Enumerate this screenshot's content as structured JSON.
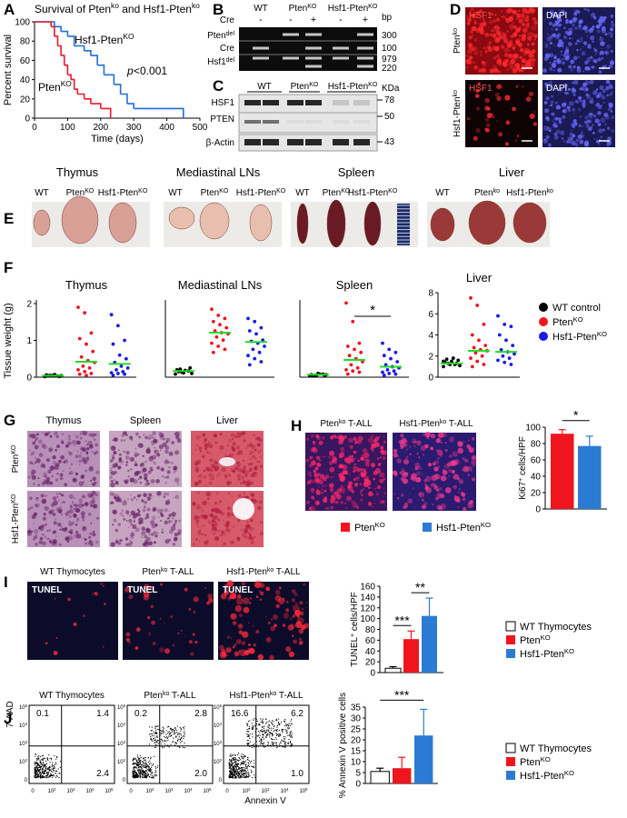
{
  "panels": {
    "A": {
      "letter": "A",
      "type": "line",
      "title": [
        "Survival of Pten",
        "ko",
        " and Hsf1-Pten",
        "ko"
      ],
      "ylabel": "Percent survival",
      "xlabel": "Time (days)",
      "xlim": [
        0,
        500
      ],
      "ylim": [
        0,
        100
      ],
      "xticks": [
        0,
        100,
        200,
        300,
        400,
        500
      ],
      "yticks": [
        0,
        20,
        40,
        60,
        80,
        100
      ],
      "series": [
        {
          "name": [
            "Hsf1-Pten",
            "KO"
          ],
          "color": "#1f6fd6",
          "x": [
            0,
            60,
            80,
            100,
            120,
            150,
            170,
            190,
            210,
            240,
            260,
            280,
            300,
            450
          ],
          "values": [
            100,
            95,
            90,
            85,
            75,
            70,
            65,
            55,
            45,
            35,
            25,
            15,
            10,
            0
          ]
        },
        {
          "name": [
            "Pten",
            "KO"
          ],
          "color": "#e8192c",
          "x": [
            0,
            50,
            60,
            70,
            80,
            90,
            100,
            110,
            120,
            130,
            150,
            170,
            200,
            230
          ],
          "values": [
            100,
            95,
            85,
            75,
            65,
            55,
            45,
            40,
            30,
            25,
            20,
            15,
            10,
            0
          ]
        }
      ],
      "p_label": "p",
      "p_value": "<0.001"
    },
    "B": {
      "letter": "B",
      "header": [
        "WT",
        [
          "Pten",
          "KO"
        ],
        [
          "Hsf1-Pten",
          "KO"
        ]
      ],
      "cre_label": "Cre",
      "cre": [
        "-",
        "-",
        "+",
        "-",
        "+"
      ],
      "unit": "bp",
      "rows": [
        [
          "Pten",
          "del"
        ],
        "Cre",
        [
          "Hsf1",
          "del"
        ]
      ],
      "sizes": [
        "300",
        "100",
        "979",
        "220"
      ]
    },
    "C": {
      "letter": "C",
      "header": [
        "WT",
        [
          "Pten",
          "KO"
        ],
        [
          "Hsf1-Pten",
          "KO"
        ]
      ],
      "unit": "KDa",
      "rows": [
        "HSF1",
        "PTEN",
        "β-Actin"
      ],
      "sizes": [
        "78",
        "50",
        "43"
      ]
    },
    "D": {
      "letter": "D",
      "stains": [
        "HSF1",
        "DAPI"
      ],
      "rows": [
        [
          "Pten",
          "ko"
        ],
        [
          "Hsf1-Pten",
          "ko"
        ]
      ]
    },
    "E": {
      "letter": "E",
      "tissues": [
        {
          "name": "Thymus",
          "samples": [
            "WT",
            [
              "Pten",
              "KO"
            ],
            [
              "Hsf1-Pten",
              "KO"
            ]
          ]
        },
        {
          "name": "Mediastinal LNs",
          "samples": [
            "WT",
            [
              "Pten",
              "KO"
            ],
            [
              "Hsf1-Pten",
              "KO"
            ]
          ]
        },
        {
          "name": "Spleen",
          "samples": [
            "WT",
            [
              "Pten",
              "KO"
            ],
            [
              "Hsf1-Pten",
              "KO"
            ]
          ]
        },
        {
          "name": "Liver",
          "samples": [
            "WT",
            [
              "Pten",
              "ko"
            ],
            [
              "Hsf1-Pten",
              "ko"
            ]
          ]
        }
      ]
    },
    "F": {
      "letter": "F",
      "type": "scatter",
      "ylabel": "Tissue weight (g)",
      "median_color": "#22dd22",
      "significance": "*",
      "legend": [
        {
          "name": "WT control",
          "color": "#000000"
        },
        {
          "name": [
            "Pten",
            "KO"
          ],
          "color": "#f0141e"
        },
        {
          "name": [
            "Hsf1-Pten",
            "KO"
          ],
          "color": "#1a1ae6"
        }
      ],
      "plots": [
        {
          "title": "Thymus",
          "ylim": [
            0,
            2.1
          ],
          "yticks": [
            0,
            1,
            2
          ],
          "groups": [
            {
              "values": [
                0.02,
                0.04,
                0.03,
                0.06,
                0.05,
                0.02,
                0.03,
                0.07,
                0.04,
                0.05,
                0.03,
                0.02
              ],
              "median": 0.04
            },
            {
              "values": [
                1.9,
                1.75,
                1.2,
                1.05,
                0.9,
                0.7,
                0.55,
                0.45,
                0.4,
                0.3,
                0.25,
                0.2,
                0.15,
                0.1,
                0.08,
                0.05
              ],
              "median": 0.42
            },
            {
              "values": [
                1.7,
                1.4,
                1.0,
                0.9,
                0.6,
                0.5,
                0.4,
                0.3,
                0.25,
                0.2,
                0.15,
                0.12,
                0.1,
                0.08,
                0.05
              ],
              "median": 0.36
            }
          ]
        },
        {
          "title": "Mediastinal LNs",
          "ylim": [
            0,
            1.25
          ],
          "groups": [
            {
              "values": [
                0.05,
                0.08,
                0.1,
                0.12,
                0.07,
                0.15,
                0.09,
                0.11,
                0.06,
                0.13
              ],
              "median": 0.1
            },
            {
              "values": [
                1.1,
                1.0,
                0.95,
                0.9,
                0.85,
                0.8,
                0.75,
                0.72,
                0.7,
                0.65,
                0.6,
                0.55,
                0.5,
                0.45,
                0.4
              ],
              "median": 0.72
            },
            {
              "values": [
                0.95,
                0.9,
                0.8,
                0.75,
                0.7,
                0.6,
                0.58,
                0.55,
                0.5,
                0.45,
                0.4,
                0.35,
                0.3,
                0.25,
                0.2
              ],
              "median": 0.57
            }
          ]
        },
        {
          "title": "Spleen",
          "ylim": [
            0,
            1.25
          ],
          "groups": [
            {
              "values": [
                0.02,
                0.03,
                0.05,
                0.04,
                0.06,
                0.03,
                0.02,
                0.05,
                0.04,
                0.03
              ],
              "median": 0.04
            },
            {
              "values": [
                1.2,
                0.9,
                0.55,
                0.5,
                0.45,
                0.4,
                0.35,
                0.3,
                0.25,
                0.2,
                0.15,
                0.12,
                0.1,
                0.08,
                0.05
              ],
              "median": 0.28
            },
            {
              "values": [
                0.55,
                0.45,
                0.4,
                0.35,
                0.3,
                0.25,
                0.2,
                0.17,
                0.15,
                0.12,
                0.1,
                0.08,
                0.06,
                0.05,
                0.03
              ],
              "median": 0.17
            }
          ]
        },
        {
          "title": "Liver",
          "ylim": [
            0,
            8
          ],
          "yticks": [
            0,
            2,
            4,
            6,
            8
          ],
          "groups": [
            {
              "values": [
                1.0,
                1.2,
                1.3,
                1.4,
                1.5,
                1.6,
                1.7,
                1.8,
                1.1,
                1.3,
                1.2,
                1.5
              ],
              "median": 1.3
            },
            {
              "values": [
                7.5,
                6.8,
                5.0,
                4.0,
                3.5,
                3.0,
                2.8,
                2.6,
                2.5,
                2.3,
                2.0,
                1.8,
                1.5,
                1.2,
                1.0
              ],
              "median": 2.5
            },
            {
              "values": [
                5.8,
                5.0,
                4.8,
                4.0,
                3.5,
                3.0,
                2.6,
                2.4,
                2.2,
                2.0,
                1.8,
                1.6,
                1.4,
                1.2
              ],
              "median": 2.4
            }
          ]
        }
      ]
    },
    "G": {
      "letter": "G",
      "columns": [
        "Thymus",
        "Spleen",
        "Liver"
      ],
      "rows": [
        [
          "Pten",
          "KO"
        ],
        [
          "Hsf1-Pten",
          "KO"
        ]
      ]
    },
    "H": {
      "letter": "H",
      "images": [
        [
          "Pten",
          "ko",
          "  T-ALL"
        ],
        [
          "Hsf1-Pten",
          "ko",
          "  T-ALL"
        ]
      ],
      "legend": [
        {
          "name": [
            "Pten",
            "KO"
          ],
          "color": "#f0141e"
        },
        {
          "name": [
            "Hsf1-Pten",
            "KO"
          ],
          "color": "#2b7bd4"
        }
      ],
      "chart": {
        "type": "bar",
        "ylabel": [
          "Ki67",
          "+",
          " cells/HPF"
        ],
        "ylim": [
          0,
          100
        ],
        "yticks": [
          0,
          20,
          40,
          60,
          80,
          100
        ],
        "values": [
          92,
          77
        ],
        "errors": [
          5,
          12
        ],
        "colors": [
          "#f0141e",
          "#2b7bd4"
        ],
        "significance": [
          "*"
        ]
      }
    },
    "I": {
      "letter": "I",
      "images": [
        "WT Thymocytes",
        [
          "Pten",
          "ko",
          " T-ALL"
        ],
        [
          "Hsf1-Pten",
          "ko",
          " T-ALL"
        ]
      ],
      "stain": "TUNEL",
      "legend": [
        {
          "name": "WT Thymocytes",
          "color": "#ffffff"
        },
        {
          "name": [
            "Pten",
            "KO"
          ],
          "color": "#f0141e"
        },
        {
          "name": [
            "Hsf1-Pten",
            "KO"
          ],
          "color": "#2b7bd4"
        }
      ],
      "chart": {
        "type": "bar",
        "ylabel": [
          "TUNEL",
          "+",
          " cells/HPF"
        ],
        "ylim": [
          0,
          160
        ],
        "yticks": [
          0,
          20,
          40,
          60,
          80,
          100,
          120,
          140,
          160
        ],
        "values": [
          8,
          62,
          105
        ],
        "errors": [
          3,
          15,
          33
        ],
        "colors": [
          "#ffffff",
          "#f0141e",
          "#2b7bd4"
        ],
        "significance": [
          "***",
          "**"
        ]
      }
    },
    "J": {
      "letter": "J",
      "images": [
        "WT Thymocytes",
        [
          "Pten",
          "ko",
          " T-ALL"
        ],
        [
          "Hsf1-Pten",
          "ko",
          " T-ALL"
        ]
      ],
      "yaxis": "7-AAD",
      "xaxis": "Annexin V",
      "ticks": [
        "0",
        [
          "10",
          "2"
        ],
        [
          "10",
          "3"
        ],
        [
          "10",
          "4"
        ],
        [
          "10",
          "5"
        ]
      ],
      "quadrants": [
        [
          "0.1",
          "1.4",
          "2.4"
        ],
        [
          "0.2",
          "2.8",
          "2.0"
        ],
        [
          "16.6",
          "6.2",
          "1.0"
        ]
      ],
      "legend": [
        {
          "name": "WT Thymocytes",
          "color": "#ffffff"
        },
        {
          "name": [
            "Pten",
            "KO"
          ],
          "color": "#f0141e"
        },
        {
          "name": [
            "Hsf1-Pten",
            "KO"
          ],
          "color": "#2b7bd4"
        }
      ],
      "chart": {
        "type": "bar",
        "ylabel": "% Annexin V positive cells",
        "ylim": [
          0,
          35
        ],
        "yticks": [
          0,
          5,
          10,
          15,
          20,
          25,
          30,
          35
        ],
        "values": [
          5.5,
          7,
          22
        ],
        "errors": [
          1.5,
          5,
          12
        ],
        "colors": [
          "#ffffff",
          "#f0141e",
          "#2b7bd4"
        ],
        "significance": [
          "***"
        ]
      }
    }
  }
}
